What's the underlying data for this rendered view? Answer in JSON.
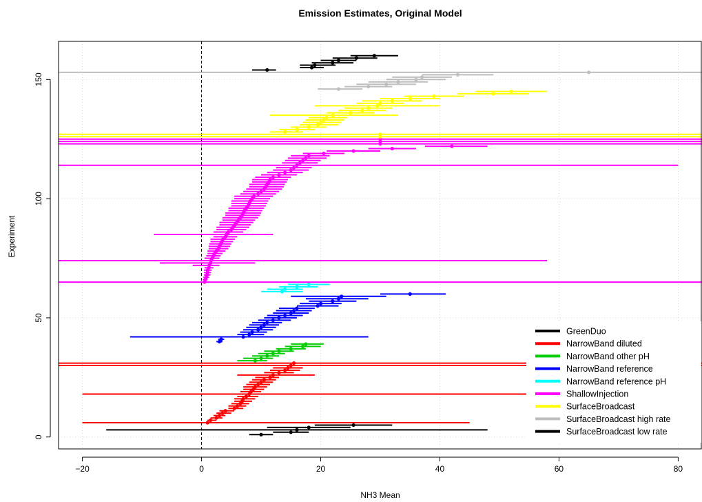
{
  "chart_data": {
    "type": "scatter",
    "title": "Emission Estimates, Original Model",
    "xlabel": "NH3 Mean",
    "ylabel": "Experiment",
    "xlim": [
      -24,
      84
    ],
    "ylim": [
      -5,
      166
    ],
    "xticks": [
      -20,
      0,
      20,
      40,
      60,
      80
    ],
    "yticks": [
      0,
      50,
      100,
      150
    ],
    "reference_line_x": 0,
    "grid": true,
    "legend_position": "bottom-right",
    "colors": {
      "GreenDuo": "#000000",
      "NarrowBand diluted": "#ff0000",
      "NarrowBand other pH": "#00cc00",
      "NarrowBand reference": "#0000ff",
      "NarrowBand reference pH": "#00ffff",
      "ShallowInjection": "#ff00ff",
      "SurfaceBroadcast": "#ffff00",
      "SurfaceBroadcast high rate": "#bebebe",
      "SurfaceBroadcast low rate": "#000000"
    },
    "series": [
      {
        "name": "GreenDuo",
        "color": "#000000",
        "points": [
          {
            "y": 154,
            "x": 11,
            "lo": 8.5,
            "hi": 12.5
          },
          {
            "y": 155,
            "x": 18.5,
            "lo": 16.5,
            "hi": 20.5
          },
          {
            "y": 156,
            "x": 19,
            "lo": 16.5,
            "hi": 22.5
          },
          {
            "y": 157,
            "x": 22,
            "lo": 18.5,
            "hi": 25.5
          },
          {
            "y": 158,
            "x": 23,
            "lo": 20,
            "hi": 26
          },
          {
            "y": 159,
            "x": 26,
            "lo": 22,
            "hi": 29.5
          },
          {
            "y": 160,
            "x": 29,
            "lo": 25,
            "hi": 33
          }
        ]
      },
      {
        "name": "NarrowBand diluted",
        "color": "#ff0000",
        "points": [
          {
            "y": 6,
            "x": 1,
            "lo": -20,
            "hi": 45
          },
          {
            "y": 7,
            "x": 1.5,
            "lo": 1,
            "hi": 2.5
          },
          {
            "y": 8,
            "x": 2.5,
            "lo": 1.5,
            "hi": 3.5
          },
          {
            "y": 9,
            "x": 3,
            "lo": 2,
            "hi": 4
          },
          {
            "y": 10,
            "x": 3.5,
            "lo": 2.5,
            "hi": 5
          },
          {
            "y": 11,
            "x": 4,
            "lo": 3,
            "hi": 5.5
          },
          {
            "y": 12,
            "x": 5.5,
            "lo": 4.5,
            "hi": 7
          },
          {
            "y": 13,
            "x": 6,
            "lo": 4.5,
            "hi": 7.5
          },
          {
            "y": 14,
            "x": 6.5,
            "lo": 5,
            "hi": 8
          },
          {
            "y": 15,
            "x": 6.8,
            "lo": 5.5,
            "hi": 8.5
          },
          {
            "y": 16,
            "x": 7,
            "lo": 5.5,
            "hi": 9
          },
          {
            "y": 17,
            "x": 7.5,
            "lo": 6,
            "hi": 9.5
          },
          {
            "y": 18,
            "x": 8,
            "lo": -20,
            "hi": 70
          },
          {
            "y": 19,
            "x": 8.3,
            "lo": 6.5,
            "hi": 10
          },
          {
            "y": 20,
            "x": 8.7,
            "lo": 7,
            "hi": 10.5
          },
          {
            "y": 21,
            "x": 9,
            "lo": 7,
            "hi": 11
          },
          {
            "y": 22,
            "x": 9.5,
            "lo": 7.5,
            "hi": 11.5
          },
          {
            "y": 23,
            "x": 10,
            "lo": 8,
            "hi": 12
          },
          {
            "y": 24,
            "x": 10.5,
            "lo": 8.5,
            "hi": 12.5
          },
          {
            "y": 25,
            "x": 11.5,
            "lo": 9,
            "hi": 13
          },
          {
            "y": 26,
            "x": 12,
            "lo": 6,
            "hi": 19
          },
          {
            "y": 27,
            "x": 13,
            "lo": 10.5,
            "hi": 15.5
          },
          {
            "y": 28,
            "x": 14,
            "lo": 11.5,
            "hi": 16.5
          },
          {
            "y": 29,
            "x": 14.5,
            "lo": 12,
            "hi": 17
          },
          {
            "y": 30,
            "x": 15,
            "lo": -24,
            "hi": 84
          },
          {
            "y": 31,
            "x": 15.5,
            "lo": -24,
            "hi": 84
          }
        ]
      },
      {
        "name": "NarrowBand other pH",
        "color": "#00cc00",
        "points": [
          {
            "y": 32,
            "x": 9,
            "lo": 6,
            "hi": 11
          },
          {
            "y": 33,
            "x": 10,
            "lo": 7,
            "hi": 12
          },
          {
            "y": 34,
            "x": 11,
            "lo": 8.5,
            "hi": 13
          },
          {
            "y": 35,
            "x": 12,
            "lo": 9.5,
            "hi": 14
          },
          {
            "y": 36,
            "x": 13,
            "lo": 10.5,
            "hi": 15.5
          },
          {
            "y": 37,
            "x": 15,
            "lo": 12.5,
            "hi": 17.5
          },
          {
            "y": 38,
            "x": 17,
            "lo": 14,
            "hi": 20
          },
          {
            "y": 39,
            "x": 17.5,
            "lo": 15,
            "hi": 20.5
          }
        ]
      },
      {
        "name": "NarrowBand reference",
        "color": "#0000ff",
        "points": [
          {
            "y": 40,
            "x": 3,
            "lo": 2.5,
            "hi": 3.5
          },
          {
            "y": 41,
            "x": 3.3,
            "lo": 2.8,
            "hi": 3.8
          },
          {
            "y": 42,
            "x": 7,
            "lo": -12,
            "hi": 28
          },
          {
            "y": 43,
            "x": 8,
            "lo": 6,
            "hi": 10.5
          },
          {
            "y": 44,
            "x": 8.5,
            "lo": 6.5,
            "hi": 11
          },
          {
            "y": 45,
            "x": 9.5,
            "lo": 7,
            "hi": 12
          },
          {
            "y": 46,
            "x": 10,
            "lo": 7.5,
            "hi": 12.5
          },
          {
            "y": 47,
            "x": 10.5,
            "lo": 8,
            "hi": 13
          },
          {
            "y": 48,
            "x": 11,
            "lo": 8.5,
            "hi": 13.5
          },
          {
            "y": 49,
            "x": 12,
            "lo": 9.5,
            "hi": 15
          },
          {
            "y": 50,
            "x": 13,
            "lo": 10.5,
            "hi": 16
          },
          {
            "y": 51,
            "x": 14,
            "lo": 11,
            "hi": 17
          },
          {
            "y": 52,
            "x": 15,
            "lo": 12,
            "hi": 18
          },
          {
            "y": 53,
            "x": 15.5,
            "lo": 12.5,
            "hi": 18.5
          },
          {
            "y": 54,
            "x": 16,
            "lo": 13,
            "hi": 19
          },
          {
            "y": 55,
            "x": 19.5,
            "lo": 16,
            "hi": 23
          },
          {
            "y": 56,
            "x": 20,
            "lo": 16.5,
            "hi": 23.5
          },
          {
            "y": 57,
            "x": 22,
            "lo": 18,
            "hi": 26
          },
          {
            "y": 58,
            "x": 23,
            "lo": 17.5,
            "hi": 28
          },
          {
            "y": 59,
            "x": 23.5,
            "lo": 15,
            "hi": 31
          },
          {
            "y": 60,
            "x": 35,
            "lo": 30,
            "hi": 41
          }
        ]
      },
      {
        "name": "NarrowBand reference pH",
        "color": "#00ffff",
        "points": [
          {
            "y": 61,
            "x": 13.5,
            "lo": 10,
            "hi": 17
          },
          {
            "y": 62,
            "x": 14,
            "lo": 11,
            "hi": 17
          },
          {
            "y": 63,
            "x": 16,
            "lo": 13,
            "hi": 19.5
          },
          {
            "y": 64,
            "x": 18,
            "lo": 14.5,
            "hi": 21.5
          }
        ]
      },
      {
        "name": "ShallowInjection",
        "color": "#ff00ff",
        "points": [
          {
            "y": 65,
            "x": 0.5,
            "lo": -24,
            "hi": 84
          },
          {
            "y": 66,
            "x": 0.6,
            "lo": 0.2,
            "hi": 1
          },
          {
            "y": 67,
            "x": 0.8,
            "lo": 0.3,
            "hi": 1.3
          },
          {
            "y": 68,
            "x": 0.9,
            "lo": 0.4,
            "hi": 1.5
          },
          {
            "y": 69,
            "x": 1,
            "lo": 0.4,
            "hi": 1.6
          },
          {
            "y": 70,
            "x": 1,
            "lo": 0.4,
            "hi": 1.7
          },
          {
            "y": 71,
            "x": 1.2,
            "lo": 0.5,
            "hi": 2
          },
          {
            "y": 72,
            "x": 1.3,
            "lo": -1.5,
            "hi": 3
          },
          {
            "y": 73,
            "x": 1.5,
            "lo": -7,
            "hi": 9
          },
          {
            "y": 74,
            "x": 1.6,
            "lo": -24,
            "hi": 58
          },
          {
            "y": 75,
            "x": 1.8,
            "lo": 0.5,
            "hi": 3
          },
          {
            "y": 76,
            "x": 2,
            "lo": 0.8,
            "hi": 3.2
          },
          {
            "y": 77,
            "x": 2.2,
            "lo": 1,
            "hi": 3.5
          },
          {
            "y": 78,
            "x": 2.5,
            "lo": 1,
            "hi": 4
          },
          {
            "y": 79,
            "x": 2.8,
            "lo": 1.2,
            "hi": 4.5
          },
          {
            "y": 80,
            "x": 3,
            "lo": 1.2,
            "hi": 4.8
          },
          {
            "y": 81,
            "x": 3.2,
            "lo": 1.3,
            "hi": 5
          },
          {
            "y": 82,
            "x": 3.4,
            "lo": 1.5,
            "hi": 5.3
          },
          {
            "y": 83,
            "x": 3.6,
            "lo": 1.5,
            "hi": 5.6
          },
          {
            "y": 84,
            "x": 4,
            "lo": 2,
            "hi": 6
          },
          {
            "y": 85,
            "x": 4.2,
            "lo": -8,
            "hi": 12
          },
          {
            "y": 86,
            "x": 4.5,
            "lo": 2,
            "hi": 7
          },
          {
            "y": 87,
            "x": 5,
            "lo": 2.5,
            "hi": 7.5
          },
          {
            "y": 88,
            "x": 5.3,
            "lo": 2.5,
            "hi": 8
          },
          {
            "y": 89,
            "x": 5.6,
            "lo": 3,
            "hi": 8.3
          },
          {
            "y": 90,
            "x": 5.9,
            "lo": 3,
            "hi": 8.7
          },
          {
            "y": 91,
            "x": 6.2,
            "lo": 3.5,
            "hi": 9
          },
          {
            "y": 92,
            "x": 6.5,
            "lo": 3.5,
            "hi": 9.5
          },
          {
            "y": 93,
            "x": 6.8,
            "lo": 4,
            "hi": 9.8
          },
          {
            "y": 94,
            "x": 7,
            "lo": 4,
            "hi": 10
          },
          {
            "y": 95,
            "x": 7.2,
            "lo": 4.5,
            "hi": 10.2
          },
          {
            "y": 96,
            "x": 7.5,
            "lo": 4.5,
            "hi": 10.5
          },
          {
            "y": 97,
            "x": 7.8,
            "lo": 5,
            "hi": 10.8
          },
          {
            "y": 98,
            "x": 8,
            "lo": 5,
            "hi": 11
          },
          {
            "y": 99,
            "x": 8.2,
            "lo": 5,
            "hi": 11.2
          },
          {
            "y": 100,
            "x": 8.5,
            "lo": 5.5,
            "hi": 11.5
          },
          {
            "y": 101,
            "x": 8.8,
            "lo": 5.5,
            "hi": 12
          },
          {
            "y": 102,
            "x": 9.5,
            "lo": 6.5,
            "hi": 12.5
          },
          {
            "y": 103,
            "x": 10,
            "lo": 7,
            "hi": 13
          },
          {
            "y": 104,
            "x": 10.5,
            "lo": 7.5,
            "hi": 13.5
          },
          {
            "y": 105,
            "x": 10.8,
            "lo": 8,
            "hi": 13.8
          },
          {
            "y": 106,
            "x": 11,
            "lo": 8,
            "hi": 14
          },
          {
            "y": 107,
            "x": 11.3,
            "lo": 8.5,
            "hi": 14.3
          },
          {
            "y": 108,
            "x": 11.5,
            "lo": 8.5,
            "hi": 14.5
          },
          {
            "y": 109,
            "x": 12,
            "lo": 9,
            "hi": 15
          },
          {
            "y": 110,
            "x": 13,
            "lo": 10,
            "hi": 16
          },
          {
            "y": 111,
            "x": 14,
            "lo": 11,
            "hi": 17
          },
          {
            "y": 112,
            "x": 15,
            "lo": 12,
            "hi": 18
          },
          {
            "y": 113,
            "x": 15.5,
            "lo": 12.5,
            "hi": 18.5
          },
          {
            "y": 114,
            "x": 16,
            "lo": -24,
            "hi": 80
          },
          {
            "y": 115,
            "x": 16.5,
            "lo": 13.5,
            "hi": 19.5
          },
          {
            "y": 116,
            "x": 17,
            "lo": 14,
            "hi": 20
          },
          {
            "y": 117,
            "x": 17.5,
            "lo": 14.5,
            "hi": 21
          },
          {
            "y": 118,
            "x": 18,
            "lo": 15,
            "hi": 21.5
          },
          {
            "y": 119,
            "x": 20.5,
            "lo": 17,
            "hi": 24
          },
          {
            "y": 120,
            "x": 25.5,
            "lo": 21,
            "hi": 30
          },
          {
            "y": 121,
            "x": 32,
            "lo": 28,
            "hi": 36
          },
          {
            "y": 122,
            "x": 42,
            "lo": 37.5,
            "hi": 48
          },
          {
            "y": 123,
            "x": 30,
            "lo": -24,
            "hi": 84
          },
          {
            "y": 124,
            "x": 30,
            "lo": -24,
            "hi": 84
          },
          {
            "y": 125,
            "x": 30,
            "lo": -24,
            "hi": 84
          }
        ]
      },
      {
        "name": "SurfaceBroadcast",
        "color": "#ffff00",
        "points": [
          {
            "y": 126,
            "x": 30,
            "lo": -24,
            "hi": 84
          },
          {
            "y": 127,
            "x": 30,
            "lo": -24,
            "hi": 84
          },
          {
            "y": 128,
            "x": 14,
            "lo": 11.5,
            "hi": 17
          },
          {
            "y": 129,
            "x": 16,
            "lo": 13,
            "hi": 19
          },
          {
            "y": 130,
            "x": 18,
            "lo": 15,
            "hi": 21
          },
          {
            "y": 131,
            "x": 19.5,
            "lo": 16.5,
            "hi": 23
          },
          {
            "y": 132,
            "x": 20,
            "lo": 17,
            "hi": 23.5
          },
          {
            "y": 133,
            "x": 20.5,
            "lo": 17.5,
            "hi": 24
          },
          {
            "y": 134,
            "x": 21,
            "lo": 18,
            "hi": 24.5
          },
          {
            "y": 135,
            "x": 22,
            "lo": 11.5,
            "hi": 33
          },
          {
            "y": 136,
            "x": 25,
            "lo": 21,
            "hi": 29
          },
          {
            "y": 137,
            "x": 27,
            "lo": 23,
            "hi": 31
          },
          {
            "y": 138,
            "x": 28,
            "lo": 24,
            "hi": 32
          },
          {
            "y": 139,
            "x": 29.5,
            "lo": 19,
            "hi": 40
          },
          {
            "y": 140,
            "x": 30,
            "lo": 26,
            "hi": 34
          },
          {
            "y": 141,
            "x": 32,
            "lo": 27,
            "hi": 37
          },
          {
            "y": 142,
            "x": 35,
            "lo": 30,
            "hi": 40
          },
          {
            "y": 143,
            "x": 39,
            "lo": 34,
            "hi": 44
          },
          {
            "y": 144,
            "x": 49,
            "lo": 43,
            "hi": 55
          },
          {
            "y": 145,
            "x": 52,
            "lo": 46,
            "hi": 58
          }
        ]
      },
      {
        "name": "SurfaceBroadcast high rate",
        "color": "#bebebe",
        "points": [
          {
            "y": 146,
            "x": 23,
            "lo": 19.5,
            "hi": 27
          },
          {
            "y": 147,
            "x": 28,
            "lo": 24,
            "hi": 32
          },
          {
            "y": 148,
            "x": 31,
            "lo": 26,
            "hi": 36
          },
          {
            "y": 149,
            "x": 33,
            "lo": 28,
            "hi": 38
          },
          {
            "y": 150,
            "x": 36,
            "lo": 31,
            "hi": 41
          },
          {
            "y": 151,
            "x": 37,
            "lo": 32,
            "hi": 42
          },
          {
            "y": 152,
            "x": 43,
            "lo": 37,
            "hi": 49
          },
          {
            "y": 153,
            "x": 65,
            "lo": -24,
            "hi": 84
          }
        ]
      },
      {
        "name": "SurfaceBroadcast low rate",
        "color": "#000000",
        "points": [
          {
            "y": 1,
            "x": 10,
            "lo": 8,
            "hi": 12
          },
          {
            "y": 2,
            "x": 15,
            "lo": 12,
            "hi": 18
          },
          {
            "y": 3,
            "x": 16,
            "lo": -16,
            "hi": 48
          },
          {
            "y": 4,
            "x": 18,
            "lo": 11,
            "hi": 25
          },
          {
            "y": 5,
            "x": 25.5,
            "lo": 19,
            "hi": 32
          }
        ]
      }
    ]
  }
}
